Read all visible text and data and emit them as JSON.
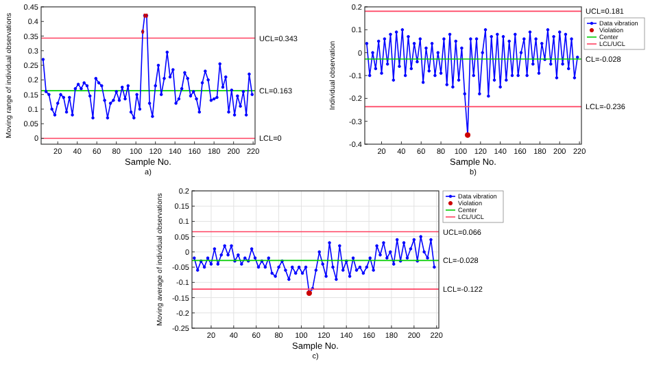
{
  "chart_data": [
    {
      "type": "line",
      "xlabel": "Sample No.",
      "ylabel": "Moving range of individual observations",
      "xlim": [
        3,
        222
      ],
      "xticks": [
        20,
        40,
        60,
        80,
        100,
        120,
        140,
        160,
        180,
        200,
        220
      ],
      "ylim": [
        -0.02,
        0.45
      ],
      "yticks": [
        0,
        0.05,
        0.1,
        0.15,
        0.2,
        0.25,
        0.3,
        0.35,
        0.4,
        0.45
      ],
      "grid": false,
      "legend": false,
      "series": [
        {
          "type": "line",
          "color": "#0000ff",
          "marker": "circle",
          "x": [
            5,
            8,
            11,
            14,
            17,
            20,
            23,
            26,
            29,
            32,
            35,
            38,
            41,
            44,
            47,
            50,
            53,
            56,
            59,
            62,
            65,
            68,
            71,
            74,
            77,
            80,
            83,
            86,
            89,
            92,
            95,
            98,
            101,
            104,
            107,
            109,
            111,
            114,
            117,
            120,
            123,
            126,
            129,
            132,
            135,
            138,
            141,
            144,
            147,
            150,
            153,
            156,
            159,
            162,
            165,
            168,
            171,
            174,
            177,
            180,
            183,
            186,
            189,
            192,
            195,
            198,
            201,
            204,
            207,
            210,
            213,
            216,
            219
          ],
          "values": [
            0.27,
            0.16,
            0.15,
            0.1,
            0.08,
            0.12,
            0.15,
            0.14,
            0.09,
            0.14,
            0.08,
            0.17,
            0.185,
            0.17,
            0.19,
            0.18,
            0.145,
            0.07,
            0.205,
            0.19,
            0.18,
            0.13,
            0.07,
            0.12,
            0.13,
            0.16,
            0.13,
            0.175,
            0.135,
            0.18,
            0.09,
            0.07,
            0.15,
            0.1,
            0.365,
            0.42,
            0.42,
            0.12,
            0.075,
            0.18,
            0.25,
            0.15,
            0.205,
            0.295,
            0.21,
            0.235,
            0.12,
            0.135,
            0.17,
            0.225,
            0.205,
            0.145,
            0.16,
            0.135,
            0.09,
            0.19,
            0.23,
            0.2,
            0.13,
            0.135,
            0.14,
            0.255,
            0.175,
            0.21,
            0.09,
            0.165,
            0.08,
            0.145,
            0.11,
            0.16,
            0.08,
            0.22,
            0.15
          ]
        },
        {
          "type": "scatter",
          "color": "#cc0000",
          "marker": "square",
          "x": [
            107,
            109,
            111
          ],
          "values": [
            0.365,
            0.42,
            0.42
          ]
        }
      ],
      "ref_lines": [
        {
          "axis": "y",
          "value": 0.343,
          "label": "UCL=0.343",
          "color": "#ff4060"
        },
        {
          "axis": "y",
          "value": 0.163,
          "label": "CL=0.163",
          "color": "#00cc00"
        },
        {
          "axis": "y",
          "value": 0,
          "label": "LCL=0",
          "color": "#ff4060"
        }
      ],
      "annotations": [
        "a)"
      ]
    },
    {
      "type": "line",
      "xlabel": "Sample No.",
      "ylabel": "Individual observation",
      "xlim": [
        3,
        222
      ],
      "xticks": [
        20,
        40,
        60,
        80,
        100,
        120,
        140,
        160,
        180,
        200,
        220
      ],
      "ylim": [
        -0.4,
        0.2
      ],
      "yticks": [
        -0.4,
        -0.3,
        -0.2,
        -0.1,
        0,
        0.1,
        0.2
      ],
      "grid": false,
      "legend": "right",
      "series": [
        {
          "type": "line",
          "name": "Data vibration",
          "color": "#0000ff",
          "marker": "circle",
          "x": [
            5,
            8,
            11,
            14,
            17,
            20,
            23,
            26,
            29,
            32,
            35,
            38,
            41,
            44,
            47,
            50,
            53,
            56,
            59,
            62,
            65,
            68,
            71,
            74,
            77,
            80,
            83,
            86,
            89,
            92,
            95,
            98,
            101,
            104,
            107,
            110,
            113,
            116,
            119,
            122,
            125,
            128,
            131,
            134,
            137,
            140,
            143,
            146,
            149,
            152,
            155,
            158,
            161,
            164,
            167,
            170,
            173,
            176,
            179,
            182,
            185,
            188,
            191,
            194,
            197,
            200,
            203,
            206,
            209,
            212,
            215,
            218
          ],
          "values": [
            0.04,
            -0.1,
            0,
            -0.07,
            0.05,
            -0.09,
            0.06,
            -0.05,
            0.08,
            -0.12,
            0.09,
            -0.06,
            0.1,
            -0.1,
            0.07,
            -0.07,
            0.04,
            -0.04,
            0.06,
            -0.13,
            0.02,
            -0.08,
            0.04,
            -0.1,
            0,
            -0.09,
            0.06,
            -0.14,
            0.08,
            -0.15,
            0.05,
            -0.12,
            0.02,
            -0.18,
            -0.36,
            0.06,
            -0.1,
            0.06,
            -0.18,
            0,
            0.1,
            -0.19,
            0.07,
            -0.12,
            0.08,
            -0.15,
            0.07,
            -0.12,
            0.05,
            -0.1,
            0.08,
            -0.1,
            0,
            0.06,
            -0.1,
            0.09,
            -0.05,
            0.06,
            -0.09,
            0.04,
            -0.03,
            0.1,
            -0.05,
            0.07,
            -0.11,
            0.09,
            -0.05,
            0.08,
            -0.07,
            0.06,
            -0.11,
            -0.02
          ]
        },
        {
          "type": "scatter",
          "name": "Violation",
          "color": "#cc0000",
          "marker": "circle",
          "x": [
            107
          ],
          "values": [
            -0.36
          ]
        },
        {
          "type": "line",
          "name": "Center",
          "color": "#00cc00",
          "marker": "none",
          "x": [
            3,
            222
          ],
          "values": [
            -0.028,
            -0.028
          ],
          "value_labels": [
            null,
            "CL=-0.028"
          ]
        },
        {
          "type": "line",
          "name": "LCL/UCL",
          "color": "#ff4060",
          "marker": "none",
          "x": [
            3,
            222
          ],
          "values": [
            0.181,
            0.181
          ],
          "value_labels": [
            null,
            "UCL=0.181"
          ]
        },
        {
          "type": "line",
          "color": "#ff4060",
          "marker": "none",
          "x": [
            3,
            222
          ],
          "values": [
            -0.236,
            -0.236
          ],
          "value_labels": [
            null,
            "LCL=-0.236"
          ]
        }
      ],
      "annotations": [
        "b)"
      ]
    },
    {
      "type": "line",
      "xlabel": "Sample No.",
      "ylabel": "Moving average of individual observations",
      "xlim": [
        3,
        222
      ],
      "xticks": [
        20,
        40,
        60,
        80,
        100,
        120,
        140,
        160,
        180,
        200,
        220
      ],
      "ylim": [
        -0.25,
        0.2
      ],
      "yticks": [
        -0.25,
        -0.2,
        -0.15,
        -0.1,
        -0.05,
        0,
        0.05,
        0.1,
        0.15,
        0.2
      ],
      "grid": true,
      "legend": "top right",
      "series": [
        {
          "type": "line",
          "name": "Data vibration",
          "color": "#0000ff",
          "marker": "circle",
          "x": [
            5,
            8,
            11,
            14,
            17,
            20,
            23,
            26,
            29,
            32,
            35,
            38,
            41,
            44,
            47,
            50,
            53,
            56,
            59,
            62,
            65,
            68,
            71,
            74,
            77,
            80,
            83,
            86,
            89,
            92,
            95,
            98,
            101,
            104,
            107,
            110,
            113,
            116,
            119,
            122,
            125,
            128,
            131,
            134,
            137,
            140,
            143,
            146,
            149,
            152,
            155,
            158,
            161,
            164,
            167,
            170,
            173,
            176,
            179,
            182,
            185,
            188,
            191,
            194,
            197,
            200,
            203,
            206,
            209,
            212,
            215,
            218
          ],
          "values": [
            -0.02,
            -0.06,
            -0.03,
            -0.05,
            -0.02,
            -0.04,
            0.01,
            -0.04,
            -0.01,
            0.02,
            -0.01,
            0.02,
            -0.03,
            -0.01,
            -0.04,
            -0.02,
            -0.03,
            0.01,
            -0.02,
            -0.05,
            -0.03,
            -0.05,
            -0.02,
            -0.07,
            -0.08,
            -0.05,
            -0.03,
            -0.06,
            -0.09,
            -0.05,
            -0.07,
            -0.05,
            -0.07,
            -0.05,
            -0.135,
            -0.12,
            -0.06,
            0,
            -0.04,
            -0.08,
            0.03,
            -0.05,
            -0.09,
            0.02,
            -0.06,
            -0.03,
            -0.08,
            -0.02,
            -0.06,
            -0.05,
            -0.07,
            -0.05,
            -0.02,
            -0.06,
            0.02,
            -0.01,
            0.03,
            -0.02,
            0,
            -0.04,
            0.04,
            -0.03,
            0.03,
            -0.02,
            0.01,
            0.04,
            -0.03,
            0.05,
            0,
            -0.02,
            0.04,
            -0.05
          ]
        },
        {
          "type": "scatter",
          "name": "Violation",
          "color": "#cc0000",
          "marker": "circle",
          "x": [
            107
          ],
          "values": [
            -0.135
          ]
        },
        {
          "type": "line",
          "name": "Center",
          "color": "#00cc00",
          "marker": "none",
          "x": [
            3,
            222
          ],
          "values": [
            -0.028,
            -0.028
          ],
          "value_labels": [
            null,
            "CL=-0.028"
          ]
        },
        {
          "type": "line",
          "name": "LCL/UCL",
          "color": "#ff4060",
          "marker": "none",
          "x": [
            3,
            222
          ],
          "values": [
            0.066,
            0.066
          ],
          "value_labels": [
            null,
            "UCL=0.066"
          ]
        },
        {
          "type": "line",
          "color": "#ff4060",
          "marker": "none",
          "x": [
            3,
            222
          ],
          "values": [
            -0.122,
            -0.122
          ],
          "value_labels": [
            null,
            "LCL=-0.122"
          ]
        }
      ],
      "annotations": [
        "c)"
      ]
    }
  ]
}
